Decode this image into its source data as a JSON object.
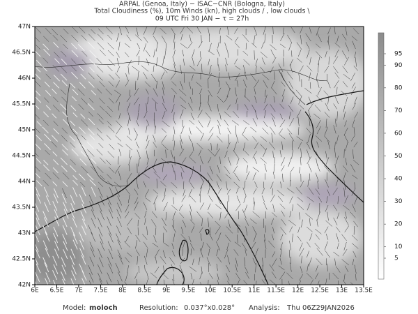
{
  "header": {
    "lines": [
      "ARPAL (Genoa, Italy)  −  ISAC−CNR (Bologna, Italy)",
      "Total Cloudiness (%), 10m Winds (kn), high clouds / , low clouds \\",
      "09 UTC Fri 30 JAN  −  τ = 27h"
    ]
  },
  "map": {
    "lat_labels": [
      "47N",
      "46.5N",
      "46N",
      "45.5N",
      "45N",
      "44.5N",
      "44N",
      "43.5N",
      "43N",
      "42.5N",
      "42N"
    ],
    "lon_labels": [
      "6E",
      "6.5E",
      "7E",
      "7.5E",
      "8E",
      "8.5E",
      "9E",
      "9.5E",
      "10E",
      "10.5E",
      "11E",
      "11.5E",
      "12E",
      "12.5E",
      "13E",
      "13.5E"
    ]
  },
  "colorbar": {
    "labels": [
      5,
      10,
      20,
      30,
      40,
      50,
      60,
      70,
      80,
      90,
      95
    ]
  },
  "footer": {
    "model_label": "Model:",
    "model": "moloch",
    "resolution_label": "Resolution:",
    "resolution": "0.037°x0.028°",
    "analysis_label": "Analysis:",
    "analysis": "Thu 06Z29JAN2026"
  }
}
